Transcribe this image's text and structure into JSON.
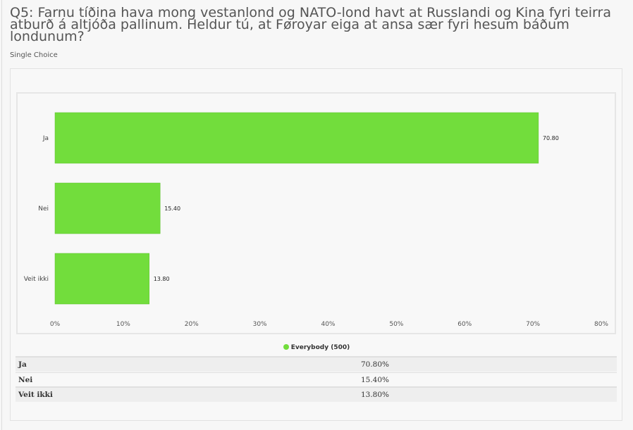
{
  "question": {
    "title": "Q5: Farnu tíðina hava mong vestanlond og NATO-lond havt at Russlandi og Kina fyri teirra atburð á altjóða pallinum. Heldur tú, at Føroyar eiga at ansa sær fyri hesum báðum londunum?",
    "type": "Single Choice"
  },
  "chart_data": {
    "type": "bar",
    "orientation": "horizontal",
    "categories": [
      "Ja",
      "Nei",
      "Veit ikki"
    ],
    "series": [
      {
        "name": "Everybody (500)",
        "values": [
          70.8,
          15.4,
          13.8
        ],
        "color": "#72dd3c"
      }
    ],
    "data_labels": [
      "70.80",
      "15.40",
      "13.80"
    ],
    "xlim": [
      0,
      80
    ],
    "xticks": [
      "0%",
      "10%",
      "20%",
      "30%",
      "40%",
      "50%",
      "60%",
      "70%",
      "80%"
    ],
    "legend_placement": "bottom"
  },
  "table": {
    "legend": "Everybody (500)",
    "rows": [
      {
        "label": "Ja",
        "value": "70.80%"
      },
      {
        "label": "Nei",
        "value": "15.40%"
      },
      {
        "label": "Veit ikki",
        "value": "13.80%"
      }
    ]
  }
}
